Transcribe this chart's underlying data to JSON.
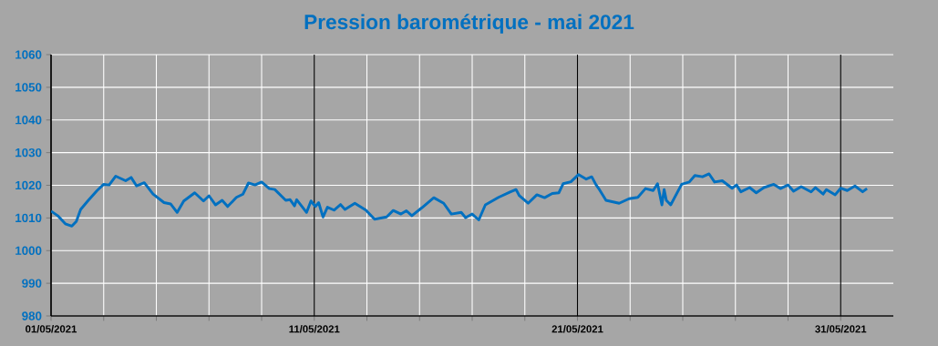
{
  "chart_data": {
    "type": "line",
    "title": "Pression barométrique - mai 2021",
    "xlim": [
      "2021-05-01",
      "2021-06-02"
    ],
    "ylim": [
      980,
      1060
    ],
    "yticks": [
      980,
      990,
      1000,
      1010,
      1020,
      1030,
      1040,
      1050,
      1060
    ],
    "xticks": [
      {
        "value": "2021-05-01",
        "label": "01/05/2021"
      },
      {
        "value": "2021-05-03",
        "label": null
      },
      {
        "value": "2021-05-05",
        "label": null
      },
      {
        "value": "2021-05-07",
        "label": null
      },
      {
        "value": "2021-05-09",
        "label": null
      },
      {
        "value": "2021-05-11",
        "label": "11/05/2021"
      },
      {
        "value": "2021-05-13",
        "label": null
      },
      {
        "value": "2021-05-15",
        "label": null
      },
      {
        "value": "2021-05-17",
        "label": null
      },
      {
        "value": "2021-05-19",
        "label": null
      },
      {
        "value": "2021-05-21",
        "label": "21/05/2021"
      },
      {
        "value": "2021-05-23",
        "label": null
      },
      {
        "value": "2021-05-25",
        "label": null
      },
      {
        "value": "2021-05-27",
        "label": null
      },
      {
        "value": "2021-05-29",
        "label": null
      },
      {
        "value": "2021-05-31",
        "label": "31/05/2021"
      }
    ],
    "grid": true,
    "legend": false,
    "marker": "none",
    "line_style": "solid",
    "x": [
      "2021-05-01T00:00",
      "2021-05-01T06:00",
      "2021-05-01T13:00",
      "2021-05-01T19:00",
      "2021-05-01T23:00",
      "2021-05-02T03:00",
      "2021-05-02T10:00",
      "2021-05-02T18:00",
      "2021-05-03T00:00",
      "2021-05-03T05:00",
      "2021-05-03T11:00",
      "2021-05-03T20:00",
      "2021-05-04T01:00",
      "2021-05-04T06:00",
      "2021-05-04T13:00",
      "2021-05-04T21:00",
      "2021-05-05T07:00",
      "2021-05-05T13:00",
      "2021-05-05T19:00",
      "2021-05-06T01:00",
      "2021-05-06T11:00",
      "2021-05-06T19:00",
      "2021-05-07T00:00",
      "2021-05-07T06:00",
      "2021-05-07T12:00",
      "2021-05-07T17:00",
      "2021-05-08T01:00",
      "2021-05-08T07:00",
      "2021-05-08T12:00",
      "2021-05-08T18:00",
      "2021-05-09T00:00",
      "2021-05-09T07:00",
      "2021-05-09T12:00",
      "2021-05-09T22:00",
      "2021-05-10T02:00",
      "2021-05-10T06:00",
      "2021-05-10T08:00",
      "2021-05-10T17:00",
      "2021-05-10T21:00",
      "2021-05-11T01:00",
      "2021-05-11T04:00",
      "2021-05-11T08:00",
      "2021-05-11T12:00",
      "2021-05-11T18:00",
      "2021-05-12T00:00",
      "2021-05-12T04:00",
      "2021-05-12T13:00",
      "2021-05-12T23:00",
      "2021-05-13T07:00",
      "2021-05-13T18:00",
      "2021-05-14T00:00",
      "2021-05-14T07:00",
      "2021-05-14T12:00",
      "2021-05-14T17:00",
      "2021-05-15T02:00",
      "2021-05-15T13:00",
      "2021-05-15T22:00",
      "2021-05-16T05:00",
      "2021-05-16T14:00",
      "2021-05-16T18:00",
      "2021-05-17T00:00",
      "2021-05-17T06:00",
      "2021-05-17T12:00",
      "2021-05-18T00:00",
      "2021-05-18T11:00",
      "2021-05-18T16:00",
      "2021-05-18T19:00",
      "2021-05-19T03:00",
      "2021-05-19T11:00",
      "2021-05-19T18:00",
      "2021-05-20T01:00",
      "2021-05-20T07:00",
      "2021-05-20T11:00",
      "2021-05-20T18:00",
      "2021-05-21T01:00",
      "2021-05-21T08:00",
      "2021-05-21T13:00",
      "2021-05-21T17:00",
      "2021-05-21T20:00",
      "2021-05-22T02:00",
      "2021-05-22T14:00",
      "2021-05-22T23:00",
      "2021-05-23T07:00",
      "2021-05-23T14:00",
      "2021-05-23T21:00",
      "2021-05-24T01:00",
      "2021-05-24T05:00",
      "2021-05-24T07:00",
      "2021-05-24T09:00",
      "2021-05-24T13:00",
      "2021-05-24T23:00",
      "2021-05-25T06:00",
      "2021-05-25T11:00",
      "2021-05-25T18:00",
      "2021-05-26T00:00",
      "2021-05-26T05:00",
      "2021-05-26T12:00",
      "2021-05-26T21:00",
      "2021-05-27T01:00",
      "2021-05-27T05:00",
      "2021-05-27T13:00",
      "2021-05-27T19:00",
      "2021-05-28T02:00",
      "2021-05-28T11:00",
      "2021-05-28T17:00",
      "2021-05-29T00:00",
      "2021-05-29T05:00",
      "2021-05-29T12:00",
      "2021-05-29T21:00",
      "2021-05-30T01:00",
      "2021-05-30T08:00",
      "2021-05-30T11:00",
      "2021-05-30T19:00",
      "2021-05-31T00:00",
      "2021-05-31T06:00",
      "2021-05-31T13:00",
      "2021-05-31T20:00",
      "2021-06-01T00:00"
    ],
    "series": [
      {
        "color": "#0070c0",
        "values": [
          1012.1,
          1010.7,
          1008.2,
          1007.5,
          1008.9,
          1012.6,
          1015.4,
          1018.4,
          1020.3,
          1020.1,
          1022.8,
          1021.4,
          1022.4,
          1019.8,
          1020.8,
          1017.3,
          1014.7,
          1014.3,
          1011.7,
          1015.2,
          1017.7,
          1015.2,
          1016.8,
          1014.0,
          1015.4,
          1013.5,
          1016.3,
          1017.3,
          1020.7,
          1020.1,
          1021.0,
          1019.0,
          1018.7,
          1015.4,
          1015.6,
          1013.7,
          1015.6,
          1011.7,
          1015.2,
          1013.5,
          1014.7,
          1010.3,
          1013.3,
          1012.4,
          1014.1,
          1012.6,
          1014.5,
          1012.4,
          1009.6,
          1010.3,
          1012.3,
          1011.2,
          1012.2,
          1010.7,
          1013.1,
          1016.2,
          1014.5,
          1011.2,
          1011.7,
          1010.1,
          1011.2,
          1009.4,
          1014.0,
          1016.3,
          1018.0,
          1018.7,
          1016.8,
          1014.5,
          1017.1,
          1016.2,
          1017.5,
          1017.7,
          1020.5,
          1021.1,
          1023.3,
          1021.9,
          1022.6,
          1020.1,
          1018.7,
          1015.4,
          1014.5,
          1015.9,
          1016.3,
          1019.0,
          1018.4,
          1020.5,
          1014.0,
          1018.7,
          1015.4,
          1014.0,
          1020.3,
          1021.0,
          1023.0,
          1022.6,
          1023.5,
          1021.0,
          1021.4,
          1019.1,
          1020.1,
          1018.0,
          1019.3,
          1017.7,
          1019.3,
          1020.3,
          1019.0,
          1020.1,
          1018.2,
          1019.6,
          1018.0,
          1019.3,
          1017.3,
          1018.7,
          1017.1,
          1019.1,
          1018.4,
          1019.8,
          1018.0,
          1019.0
        ]
      }
    ]
  }
}
